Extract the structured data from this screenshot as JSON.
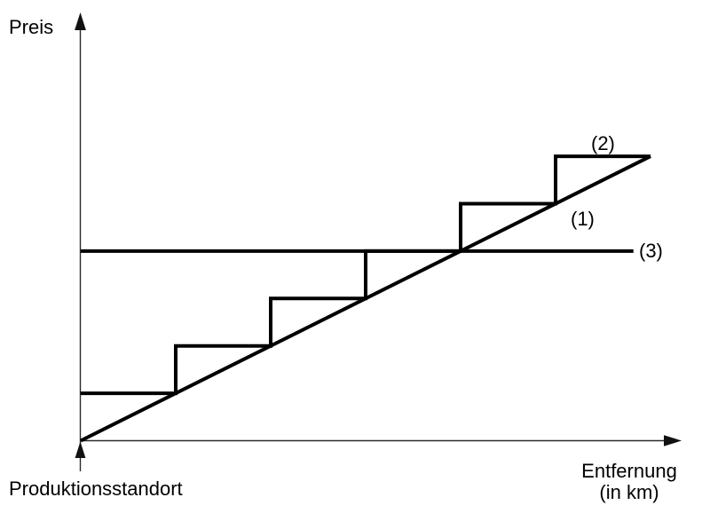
{
  "page": {
    "background": "#ffffff"
  },
  "colors": {
    "series": "#000000",
    "axis": "#2a2a2a",
    "text": "#000000",
    "background": "#ffffff"
  },
  "labels": {
    "y_axis": "Preis",
    "x_axis_line1": "Entfernung",
    "x_axis_line2": "(in km)",
    "origin": "Produktionsstandort"
  },
  "chart_data": {
    "type": "line",
    "title": "",
    "xlabel": "Entfernung (in km)",
    "ylabel": "Preis",
    "origin_label": "Produktionsstandort",
    "grid": false,
    "axis_ticks": "none",
    "x_range_units": [
      0,
      6.33
    ],
    "y_range_units": [
      0,
      8.9
    ],
    "legend_position": "inline-annotations",
    "series": [
      {
        "label": "(1)",
        "shape": "straight diagonal rising from origin",
        "points": [
          [
            0,
            0
          ],
          [
            6,
            6
          ]
        ]
      },
      {
        "label": "(2)",
        "shape": "staircase of six steps riding on the diagonal",
        "points": [
          [
            0,
            1
          ],
          [
            1,
            1
          ],
          [
            1,
            2
          ],
          [
            2,
            2
          ],
          [
            2,
            3
          ],
          [
            3,
            3
          ],
          [
            3,
            4
          ],
          [
            4,
            4
          ],
          [
            4,
            5
          ],
          [
            5,
            5
          ],
          [
            5,
            6
          ],
          [
            6,
            6
          ]
        ]
      },
      {
        "label": "(3)",
        "shape": "horizontal line at step-4 level",
        "points": [
          [
            0,
            4
          ],
          [
            5.82,
            4
          ]
        ]
      }
    ]
  }
}
